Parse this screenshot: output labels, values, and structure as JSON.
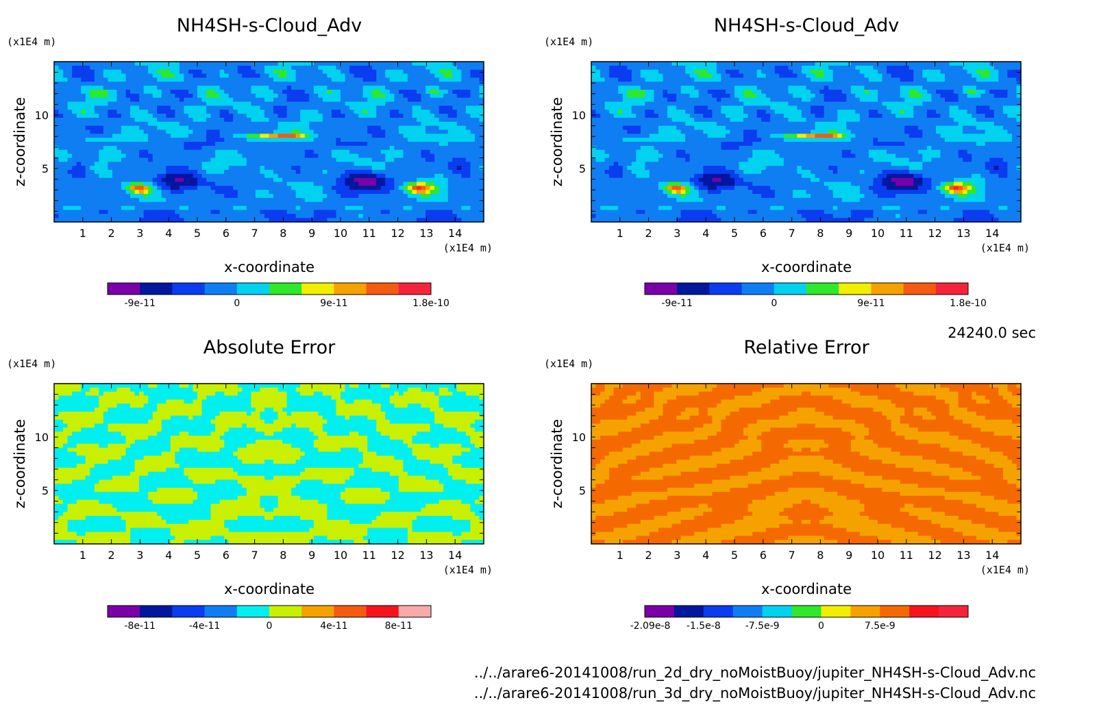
{
  "time_label": "24240.0 sec",
  "files": [
    "../../arare6-20141008/run_2d_dry_noMoistBuoy/jupiter_NH4SH-s-Cloud_Adv.nc",
    "../../arare6-20141008/run_3d_dry_noMoistBuoy/jupiter_NH4SH-s-Cloud_Adv.nc"
  ],
  "chart_data": [
    {
      "type": "heatmap",
      "title": "NH4SH-s-Cloud_Adv",
      "xlabel": "x-coordinate",
      "ylabel": "z-coordinate",
      "x_unit": "(x1E4 m)",
      "y_unit": "(x1E4 m)",
      "xlim": [
        0,
        15
      ],
      "ylim": [
        0,
        15
      ],
      "xticks": [
        "1",
        "2",
        "3",
        "4",
        "5",
        "6",
        "7",
        "8",
        "9",
        "10",
        "11",
        "12",
        "13",
        "14"
      ],
      "yticks": [
        "5",
        "10"
      ],
      "field": "flow",
      "colorbar": {
        "colors": [
          "#7a00a8",
          "#00179e",
          "#0a3cf0",
          "#0f7ef2",
          "#00d2f0",
          "#2ee82a",
          "#f2ee00",
          "#f5a200",
          "#f55a10",
          "#f5243a"
        ],
        "labels": [
          "-9e-11",
          "0",
          "9e-11",
          "1.8e-10"
        ]
      }
    },
    {
      "type": "heatmap",
      "title": "NH4SH-s-Cloud_Adv",
      "xlabel": "x-coordinate",
      "ylabel": "z-coordinate",
      "x_unit": "(x1E4 m)",
      "y_unit": "(x1E4 m)",
      "xlim": [
        0,
        15
      ],
      "ylim": [
        0,
        15
      ],
      "xticks": [
        "1",
        "2",
        "3",
        "4",
        "5",
        "6",
        "7",
        "8",
        "9",
        "10",
        "11",
        "12",
        "13",
        "14"
      ],
      "yticks": [
        "5",
        "10"
      ],
      "field": "flow",
      "colorbar": {
        "colors": [
          "#7a00a8",
          "#00179e",
          "#0a3cf0",
          "#0f7ef2",
          "#00d2f0",
          "#2ee82a",
          "#f2ee00",
          "#f5a200",
          "#f55a10",
          "#f5243a"
        ],
        "labels": [
          "-9e-11",
          "0",
          "9e-11",
          "1.8e-10"
        ]
      }
    },
    {
      "type": "heatmap",
      "title": "Absolute Error",
      "xlabel": "x-coordinate",
      "ylabel": "z-coordinate",
      "x_unit": "(x1E4 m)",
      "y_unit": "(x1E4 m)",
      "xlim": [
        0,
        15
      ],
      "ylim": [
        0,
        15
      ],
      "xticks": [
        "1",
        "2",
        "3",
        "4",
        "5",
        "6",
        "7",
        "8",
        "9",
        "10",
        "11",
        "12",
        "13",
        "14"
      ],
      "yticks": [
        "5",
        "10"
      ],
      "field": "abs",
      "colorbar": {
        "colors": [
          "#7a00a8",
          "#00179e",
          "#0a3cf0",
          "#0f7ef2",
          "#00f0f0",
          "#c8f000",
          "#f5a200",
          "#f55a10",
          "#f5141e",
          "#f7aaaa"
        ],
        "labels": [
          "-8e-11",
          "-4e-11",
          "0",
          "4e-11",
          "8e-11"
        ]
      }
    },
    {
      "type": "heatmap",
      "title": "Relative Error",
      "xlabel": "x-coordinate",
      "ylabel": "z-coordinate",
      "x_unit": "(x1E4 m)",
      "y_unit": "(x1E4 m)",
      "xlim": [
        0,
        15
      ],
      "ylim": [
        0,
        15
      ],
      "xticks": [
        "1",
        "2",
        "3",
        "4",
        "5",
        "6",
        "7",
        "8",
        "9",
        "10",
        "11",
        "12",
        "13",
        "14"
      ],
      "yticks": [
        "5",
        "10"
      ],
      "field": "rel",
      "colorbar": {
        "colors": [
          "#7a00a8",
          "#00179e",
          "#0a3cf0",
          "#0f7ef2",
          "#00d2f0",
          "#2ee82a",
          "#f2ee00",
          "#f5a200",
          "#f56a00",
          "#f5141e",
          "#f5243a"
        ],
        "labels": [
          "-2.09e-8",
          "-1.5e-8",
          "-7.5e-9",
          "0",
          "7.5e-9"
        ]
      }
    }
  ]
}
